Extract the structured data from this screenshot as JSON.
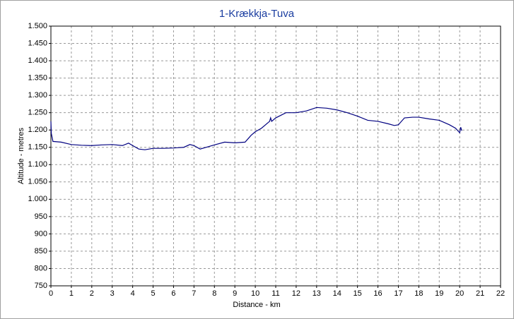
{
  "chart_data": {
    "type": "line",
    "title": "1-Krækkja-Tuva",
    "xlabel": "Distance - km",
    "ylabel": "Altitude - metres",
    "x": [
      0,
      0.02,
      0.1,
      0.5,
      1,
      1.5,
      2,
      2.5,
      3,
      3.5,
      3.8,
      4,
      4.3,
      4.6,
      5,
      5.5,
      6,
      6.5,
      6.8,
      7,
      7.3,
      7.6,
      8,
      8.5,
      9,
      9.5,
      9.8,
      10,
      10.3,
      10.5,
      10.7,
      10.75,
      10.8,
      11,
      11.5,
      12,
      12.5,
      13,
      13.5,
      14,
      14.5,
      15,
      15.5,
      16,
      16.5,
      16.8,
      17,
      17.3,
      17.7,
      18,
      18.5,
      19,
      19.5,
      19.8,
      20,
      20.05,
      20.1
    ],
    "values": [
      1225,
      1190,
      1167,
      1165,
      1158,
      1156,
      1155,
      1157,
      1158,
      1155,
      1162,
      1155,
      1145,
      1143,
      1147,
      1147,
      1148,
      1150,
      1158,
      1155,
      1145,
      1150,
      1157,
      1165,
      1163,
      1165,
      1185,
      1195,
      1205,
      1215,
      1225,
      1235,
      1225,
      1235,
      1250,
      1250,
      1255,
      1265,
      1263,
      1258,
      1250,
      1240,
      1228,
      1225,
      1218,
      1213,
      1215,
      1235,
      1237,
      1237,
      1232,
      1228,
      1215,
      1205,
      1192,
      1208,
      1198
    ],
    "color": "#000080",
    "xlim": [
      0,
      22
    ],
    "xticks": [
      0,
      1,
      2,
      3,
      4,
      5,
      6,
      7,
      8,
      9,
      10,
      11,
      12,
      13,
      14,
      15,
      16,
      17,
      18,
      19,
      20,
      21,
      22
    ],
    "ylim": [
      750,
      1500
    ],
    "yticks": [
      750,
      800,
      850,
      900,
      950,
      {
        "value": 1000,
        "label": "1.000"
      },
      {
        "value": 1050,
        "label": "1.050"
      },
      {
        "value": 1100,
        "label": "1.100"
      },
      {
        "value": 1150,
        "label": "1.150"
      },
      {
        "value": 1200,
        "label": "1.200"
      },
      {
        "value": 1250,
        "label": "1.250"
      },
      {
        "value": 1300,
        "label": "1.300"
      },
      {
        "value": 1350,
        "label": "1.350"
      },
      {
        "value": 1400,
        "label": "1.400"
      },
      {
        "value": 1450,
        "label": "1.450"
      },
      {
        "value": 1500,
        "label": "1.500"
      }
    ],
    "grid": true
  }
}
